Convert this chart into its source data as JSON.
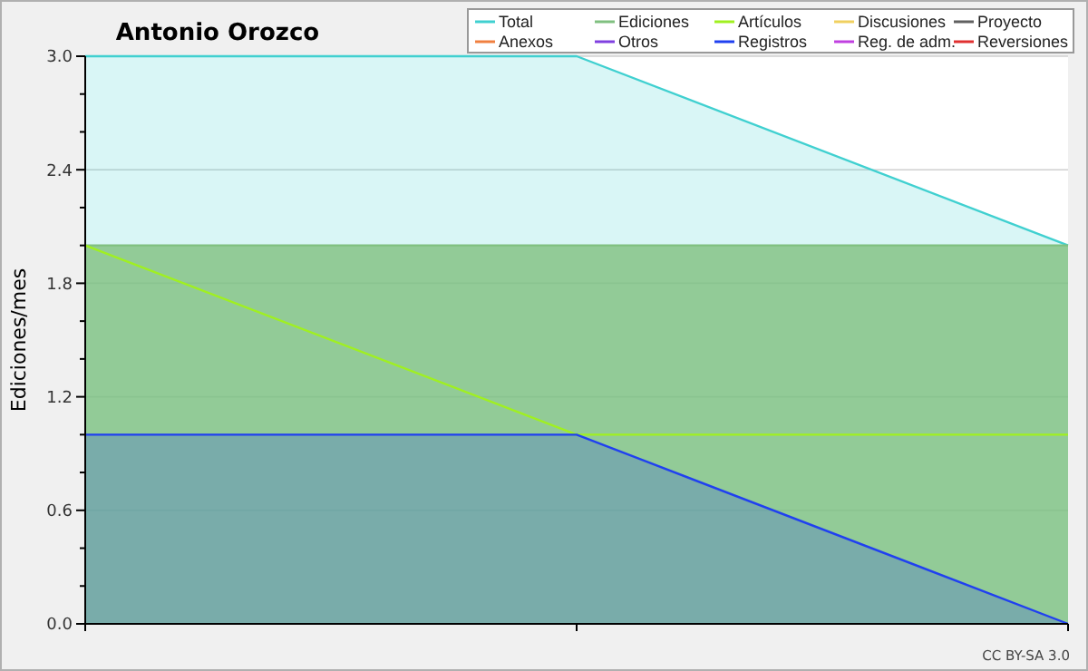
{
  "chart_data": {
    "type": "area",
    "title": "Antonio Orozco",
    "ylabel": "Ediciones/mes",
    "categories": [
      null,
      null,
      null
    ],
    "series": [
      {
        "name": "Total",
        "color": "#40d0d0",
        "values": [
          3,
          3,
          2
        ]
      },
      {
        "name": "Ediciones",
        "color": "#80c080",
        "values": [
          2,
          2,
          2
        ]
      },
      {
        "name": "Artículos",
        "color": "#a0f020",
        "type": "line",
        "values": [
          2,
          1,
          1
        ]
      },
      {
        "name": "Discusiones",
        "color": "#f0d060",
        "values": [
          null,
          null,
          null
        ]
      },
      {
        "name": "Proyecto",
        "color": "#606060",
        "values": [
          null,
          null,
          null
        ]
      },
      {
        "name": "Anexos",
        "color": "#f08040",
        "values": [
          null,
          null,
          null
        ]
      },
      {
        "name": "Otros",
        "color": "#8040e0",
        "values": [
          null,
          null,
          null
        ]
      },
      {
        "name": "Registros",
        "color": "#2040f0",
        "values": [
          1,
          1,
          0
        ]
      },
      {
        "name": "Reg. de adm.",
        "color": "#c040e0",
        "values": [
          null,
          null,
          null
        ]
      },
      {
        "name": "Reversiones",
        "color": "#e03030",
        "values": [
          null,
          null,
          null
        ]
      }
    ],
    "ylim": [
      0,
      3
    ],
    "yticks": [
      {
        "value": 0,
        "label": "0.0"
      },
      {
        "value": 0.2,
        "label": null
      },
      {
        "value": 0.4,
        "label": null
      },
      {
        "value": 0.6,
        "label": "0.6"
      },
      {
        "value": 0.8,
        "label": null
      },
      {
        "value": 1,
        "label": null
      },
      {
        "value": 1.2,
        "label": "1.2"
      },
      {
        "value": 1.4,
        "label": null
      },
      {
        "value": 1.6,
        "label": null
      },
      {
        "value": 1.8,
        "label": "1.8"
      },
      {
        "value": 2,
        "label": null
      },
      {
        "value": 2.2,
        "label": null
      },
      {
        "value": 2.4,
        "label": "2.4"
      },
      {
        "value": 2.6,
        "label": null
      },
      {
        "value": 2.8,
        "label": null
      },
      {
        "value": 3,
        "label": "3.0"
      }
    ],
    "grid": "y",
    "legend": "top right",
    "marker": "none",
    "annotations": [
      "CC BY-SA 3.0"
    ]
  }
}
